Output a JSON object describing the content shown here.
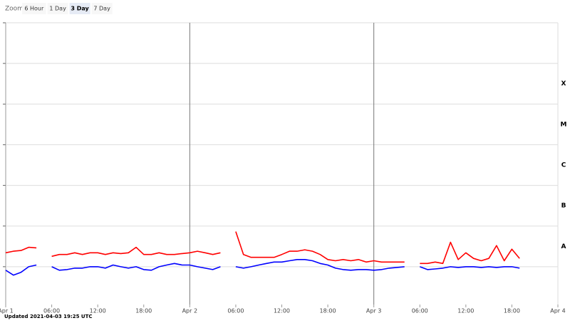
{
  "zoom": {
    "label": "Zoom",
    "options": [
      "6 Hour",
      "1 Day",
      "3 Day",
      "7 Day"
    ],
    "selected": 2
  },
  "footer": "Updated 2021-04-03 19:25 UTC",
  "chart_data": {
    "type": "line",
    "log_scale": true,
    "grid": true,
    "xlim": [
      0,
      72
    ],
    "xticks": [
      {
        "value": 0,
        "label": "Apr 1"
      },
      {
        "value": 6,
        "label": "06:00"
      },
      {
        "value": 12,
        "label": "12:00"
      },
      {
        "value": 18,
        "label": "18:00"
      },
      {
        "value": 24,
        "label": "Apr 2"
      },
      {
        "value": 30,
        "label": "06:00"
      },
      {
        "value": 36,
        "label": "12:00"
      },
      {
        "value": 42,
        "label": "18:00"
      },
      {
        "value": 48,
        "label": "Apr 3"
      },
      {
        "value": 54,
        "label": "06:00"
      },
      {
        "value": 60,
        "label": "12:00"
      },
      {
        "value": 66,
        "label": "18:00"
      },
      {
        "value": 72,
        "label": "Apr 4"
      }
    ],
    "day_lines": [
      24,
      48
    ],
    "ylim": [
      1e-09,
      0.01
    ],
    "yticks": [
      1e-08,
      1e-07,
      1e-06,
      1e-05,
      0.0001,
      0.001,
      0.01
    ],
    "classes": [
      {
        "label": "A",
        "value": 1e-08
      },
      {
        "label": "B",
        "value": 1e-07
      },
      {
        "label": "C",
        "value": 1e-06
      },
      {
        "label": "M",
        "value": 1e-05
      },
      {
        "label": "X",
        "value": 0.0001
      }
    ],
    "x": [
      0,
      1,
      2,
      3,
      4,
      5,
      6,
      7,
      8,
      9,
      10,
      11,
      12,
      13,
      14,
      15,
      16,
      17,
      18,
      19,
      20,
      21,
      22,
      23,
      24,
      25,
      26,
      27,
      28,
      29,
      30,
      31,
      32,
      33,
      34,
      35,
      36,
      37,
      38,
      39,
      40,
      41,
      42,
      43,
      44,
      45,
      46,
      47,
      48,
      49,
      50,
      51,
      52,
      53,
      54,
      55,
      56,
      57,
      58,
      59,
      60,
      61,
      62,
      63,
      64,
      65,
      66,
      67
    ],
    "series": [
      {
        "color": "#ff0000",
        "values": [
          2.2e-08,
          2.4e-08,
          2.5e-08,
          3e-08,
          2.9e-08,
          null,
          1.8e-08,
          2e-08,
          2e-08,
          2.2e-08,
          2e-08,
          2.2e-08,
          2.2e-08,
          2e-08,
          2.2e-08,
          2.1e-08,
          2.2e-08,
          3e-08,
          2e-08,
          2e-08,
          2.2e-08,
          2e-08,
          2e-08,
          2.1e-08,
          2.2e-08,
          2.4e-08,
          2.2e-08,
          2e-08,
          2.2e-08,
          null,
          7.3e-08,
          2e-08,
          1.7e-08,
          1.7e-08,
          1.7e-08,
          1.7e-08,
          2e-08,
          2.4e-08,
          2.4e-08,
          2.6e-08,
          2.4e-08,
          2e-08,
          1.5e-08,
          1.4e-08,
          1.5e-08,
          1.4e-08,
          1.5e-08,
          1.3e-08,
          1.4e-08,
          1.3e-08,
          1.3e-08,
          1.3e-08,
          1.3e-08,
          null,
          1.2e-08,
          1.2e-08,
          1.3e-08,
          1.2e-08,
          4e-08,
          1.5e-08,
          2.2e-08,
          1.6e-08,
          1.4e-08,
          1.6e-08,
          3.3e-08,
          1.4e-08,
          2.7e-08,
          1.6e-08
        ]
      },
      {
        "color": "#0000ff",
        "values": [
          8.2e-09,
          6.2e-09,
          7.3e-09,
          1e-08,
          1.1e-08,
          null,
          1e-08,
          8.2e-09,
          8.5e-09,
          9.2e-09,
          9.2e-09,
          1e-08,
          1e-08,
          9.2e-09,
          1.1e-08,
          1e-08,
          9.2e-09,
          1e-08,
          8.5e-09,
          8.2e-09,
          1e-08,
          1.1e-08,
          1.2e-08,
          1.1e-08,
          1.1e-08,
          1e-08,
          9.2e-09,
          8.5e-09,
          1e-08,
          null,
          1e-08,
          9.2e-09,
          1e-08,
          1.1e-08,
          1.2e-08,
          1.3e-08,
          1.3e-08,
          1.4e-08,
          1.5e-08,
          1.5e-08,
          1.4e-08,
          1.2e-08,
          1.1e-08,
          9.2e-09,
          8.5e-09,
          8.2e-09,
          8.5e-09,
          8.5e-09,
          8.2e-09,
          8.5e-09,
          9.2e-09,
          9.6e-09,
          1e-08,
          null,
          1e-08,
          8.5e-09,
          8.8e-09,
          9.2e-09,
          1e-08,
          9.6e-09,
          1e-08,
          1e-08,
          9.6e-09,
          1e-08,
          9.6e-09,
          1e-08,
          1e-08,
          9.2e-09
        ]
      }
    ]
  }
}
